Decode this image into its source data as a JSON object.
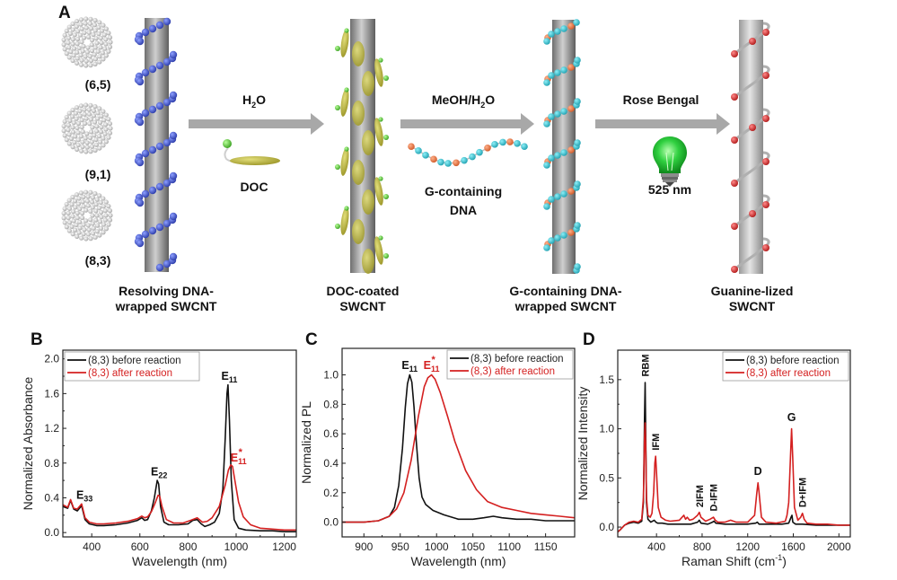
{
  "figure": {
    "panel_a": {
      "letter": "A",
      "chiralities": [
        "(6,5)",
        "(9,1)",
        "(8,3)"
      ],
      "stages": [
        {
          "caption_line1": "Resolving DNA-",
          "caption_line2": "wrapped SWCNT"
        },
        {
          "caption_line1": "DOC-coated",
          "caption_line2": "SWCNT"
        },
        {
          "caption_line1": "G-containing DNA-",
          "caption_line2": "wrapped SWCNT"
        },
        {
          "caption_line1": "Guanine-lized",
          "caption_line2": "SWCNT"
        }
      ],
      "arrows": [
        {
          "above": "H",
          "above_sub": "2",
          "above_tail": "O",
          "below_line1": "DOC",
          "below_line2": ""
        },
        {
          "above": "MeOH/H",
          "above_sub": "2",
          "above_tail": "O",
          "below_line1": "G-containing",
          "below_line2": "DNA"
        },
        {
          "above": "Rose Bengal",
          "above_sub": "",
          "above_tail": "",
          "below_line1": "525 nm",
          "below_line2": ""
        }
      ],
      "colors": {
        "nanotube": "#8c8c8c",
        "dna_blue": "#3a4fc4",
        "doc_olive": "#b5b040",
        "doc_head": "#5cc83c",
        "dna_cyan": "#2ab8c8",
        "dna_orange": "#e0703a",
        "guanine_red": "#d02828",
        "bulb_green": "#1fbf2f",
        "arrow_gray": "#a8a8a8"
      }
    }
  },
  "chart_data": [
    {
      "panel": "B",
      "type": "line",
      "title": "",
      "xlabel": "Wavelength (nm)",
      "ylabel": "Normalized Absorbance",
      "xlim": [
        280,
        1250
      ],
      "ylim": [
        -0.05,
        2.1
      ],
      "xticks": [
        400,
        600,
        800,
        1000,
        1200
      ],
      "yticks": [
        0.0,
        0.4,
        0.8,
        1.2,
        1.6,
        2.0
      ],
      "ytick_labels": [
        "0.0",
        "0.4",
        "0.8",
        "1.2",
        "1.6",
        "2.0"
      ],
      "legend": {
        "position": "top-left",
        "entries": [
          "(8,3) before reaction",
          "(8,3) after reaction"
        ]
      },
      "series": [
        {
          "name": "(8,3) before reaction",
          "color": "#111111",
          "x": [
            280,
            300,
            312,
            325,
            340,
            358,
            372,
            390,
            420,
            450,
            500,
            550,
            590,
            608,
            620,
            632,
            648,
            660,
            672,
            678,
            686,
            700,
            720,
            760,
            800,
            820,
            838,
            855,
            870,
            890,
            910,
            930,
            945,
            955,
            962,
            966,
            972,
            980,
            992,
            1010,
            1040,
            1100,
            1150,
            1200,
            1250
          ],
          "y": [
            0.3,
            0.28,
            0.37,
            0.27,
            0.25,
            0.31,
            0.15,
            0.1,
            0.08,
            0.08,
            0.09,
            0.11,
            0.14,
            0.17,
            0.14,
            0.15,
            0.25,
            0.4,
            0.6,
            0.56,
            0.3,
            0.12,
            0.09,
            0.09,
            0.1,
            0.14,
            0.15,
            0.1,
            0.07,
            0.09,
            0.12,
            0.22,
            0.5,
            1.1,
            1.6,
            1.7,
            1.3,
            0.6,
            0.15,
            0.05,
            0.03,
            0.02,
            0.02,
            0.01,
            0.01
          ]
        },
        {
          "name": "(8,3) after reaction",
          "color": "#d42020",
          "x": [
            280,
            300,
            312,
            325,
            340,
            358,
            372,
            390,
            420,
            450,
            500,
            550,
            590,
            608,
            620,
            632,
            648,
            662,
            676,
            682,
            692,
            710,
            740,
            780,
            810,
            838,
            860,
            880,
            900,
            930,
            955,
            968,
            978,
            985,
            995,
            1010,
            1030,
            1060,
            1100,
            1150,
            1200,
            1250
          ],
          "y": [
            0.32,
            0.29,
            0.38,
            0.28,
            0.27,
            0.33,
            0.17,
            0.12,
            0.1,
            0.1,
            0.11,
            0.13,
            0.16,
            0.19,
            0.17,
            0.18,
            0.24,
            0.33,
            0.43,
            0.42,
            0.3,
            0.15,
            0.11,
            0.11,
            0.14,
            0.17,
            0.12,
            0.13,
            0.17,
            0.3,
            0.55,
            0.72,
            0.78,
            0.76,
            0.6,
            0.35,
            0.18,
            0.09,
            0.05,
            0.04,
            0.03,
            0.03
          ]
        }
      ],
      "annotations": [
        {
          "text": "E",
          "sub": "33",
          "sup": "",
          "x": 370,
          "y": 0.39,
          "color": "#111111"
        },
        {
          "text": "E",
          "sub": "22",
          "sup": "",
          "x": 680,
          "y": 0.66,
          "color": "#111111"
        },
        {
          "text": "E",
          "sub": "11",
          "sup": "",
          "x": 972,
          "y": 1.76,
          "color": "#111111"
        },
        {
          "text": "E",
          "sub": "11",
          "sup": "*",
          "x": 1010,
          "y": 0.82,
          "color": "#d42020"
        }
      ]
    },
    {
      "panel": "C",
      "type": "line",
      "title": "",
      "xlabel": "Wavelength (nm)",
      "ylabel": "Normalized PL",
      "xlim": [
        870,
        1190
      ],
      "ylim": [
        -0.1,
        1.18
      ],
      "xticks": [
        900,
        950,
        1000,
        1050,
        1100,
        1150
      ],
      "yticks": [
        0.0,
        0.2,
        0.4,
        0.6,
        0.8,
        1.0
      ],
      "ytick_labels": [
        "0.0",
        "0.2",
        "0.4",
        "0.6",
        "0.8",
        "1.0"
      ],
      "legend": {
        "position": "top-right",
        "entries": [
          "(8,3) before reaction",
          "(8,3) after reaction"
        ]
      },
      "series": [
        {
          "name": "(8,3) before reaction",
          "color": "#111111",
          "x": [
            870,
            900,
            920,
            935,
            942,
            948,
            953,
            957,
            960,
            963,
            966,
            969,
            972,
            976,
            980,
            985,
            995,
            1010,
            1030,
            1050,
            1065,
            1078,
            1090,
            1110,
            1130,
            1150,
            1170,
            1190
          ],
          "y": [
            0.0,
            0.0,
            0.01,
            0.04,
            0.1,
            0.25,
            0.5,
            0.78,
            0.94,
            1.0,
            0.95,
            0.78,
            0.55,
            0.3,
            0.17,
            0.12,
            0.08,
            0.05,
            0.02,
            0.02,
            0.03,
            0.04,
            0.03,
            0.02,
            0.02,
            0.01,
            0.01,
            0.01
          ]
        },
        {
          "name": "(8,3) after reaction",
          "color": "#d42020",
          "x": [
            870,
            900,
            920,
            935,
            945,
            955,
            965,
            975,
            983,
            988,
            993,
            998,
            1005,
            1015,
            1025,
            1040,
            1055,
            1070,
            1090,
            1110,
            1130,
            1150,
            1170,
            1190
          ],
          "y": [
            0.0,
            0.0,
            0.01,
            0.04,
            0.09,
            0.2,
            0.42,
            0.72,
            0.92,
            0.98,
            1.0,
            0.97,
            0.88,
            0.72,
            0.55,
            0.35,
            0.22,
            0.14,
            0.1,
            0.08,
            0.06,
            0.05,
            0.04,
            0.03
          ]
        }
      ],
      "annotations": [
        {
          "text": "E",
          "sub": "11",
          "sup": "",
          "x": 963,
          "y": 1.04,
          "color": "#111111"
        },
        {
          "text": "E",
          "sub": "11",
          "sup": "*",
          "x": 993,
          "y": 1.04,
          "color": "#d42020"
        }
      ]
    },
    {
      "panel": "D",
      "type": "line",
      "title": "",
      "xlabel": "Raman Shift (cm",
      "xlabel_sup": "-1",
      "xlabel_tail": ")",
      "ylabel": "Normalized Intensity",
      "xlim": [
        60,
        2100
      ],
      "ylim": [
        -0.1,
        1.8
      ],
      "xticks": [
        400,
        800,
        1200,
        1600,
        2000
      ],
      "yticks": [
        0.0,
        0.5,
        1.0,
        1.5
      ],
      "ytick_labels": [
        "0.0",
        "0.5",
        "1.0",
        "1.5"
      ],
      "legend": {
        "position": "top-right",
        "entries": [
          "(8,3) before reaction",
          "(8,3) after reaction"
        ]
      },
      "series": [
        {
          "name": "(8,3) before reaction",
          "color": "#111111",
          "x": [
            60,
            80,
            120,
            160,
            200,
            240,
            270,
            285,
            295,
            300,
            305,
            312,
            325,
            350,
            380,
            395,
            410,
            450,
            500,
            600,
            700,
            760,
            775,
            790,
            850,
            890,
            905,
            920,
            1000,
            1100,
            1200,
            1270,
            1285,
            1300,
            1400,
            1500,
            1560,
            1580,
            1588,
            1596,
            1620,
            1680,
            1800,
            2000,
            2100
          ],
          "y": [
            -0.05,
            -0.03,
            0.02,
            0.04,
            0.05,
            0.04,
            0.06,
            0.25,
            1.1,
            1.47,
            1.0,
            0.25,
            0.08,
            0.05,
            0.07,
            0.05,
            0.04,
            0.04,
            0.03,
            0.03,
            0.03,
            0.05,
            0.07,
            0.04,
            0.03,
            0.05,
            0.06,
            0.04,
            0.03,
            0.03,
            0.03,
            0.04,
            0.05,
            0.03,
            0.03,
            0.03,
            0.04,
            0.1,
            0.12,
            0.05,
            0.03,
            0.03,
            0.02,
            0.02,
            0.02
          ]
        },
        {
          "name": "(8,3) after reaction",
          "color": "#d42020",
          "x": [
            60,
            80,
            120,
            160,
            200,
            240,
            270,
            285,
            295,
            300,
            305,
            312,
            325,
            345,
            360,
            375,
            385,
            392,
            400,
            415,
            440,
            480,
            520,
            600,
            640,
            655,
            670,
            690,
            720,
            760,
            775,
            790,
            830,
            870,
            900,
            915,
            940,
            1000,
            1050,
            1100,
            1200,
            1260,
            1280,
            1290,
            1300,
            1320,
            1360,
            1450,
            1530,
            1545,
            1560,
            1575,
            1585,
            1595,
            1610,
            1640,
            1665,
            1680,
            1695,
            1720,
            1800,
            1900,
            2000,
            2100
          ],
          "y": [
            -0.05,
            -0.03,
            0.02,
            0.05,
            0.06,
            0.05,
            0.08,
            0.3,
            0.9,
            1.06,
            0.85,
            0.3,
            0.12,
            0.1,
            0.14,
            0.35,
            0.65,
            0.72,
            0.55,
            0.2,
            0.1,
            0.07,
            0.06,
            0.07,
            0.12,
            0.08,
            0.1,
            0.07,
            0.08,
            0.12,
            0.15,
            0.1,
            0.06,
            0.08,
            0.1,
            0.07,
            0.05,
            0.05,
            0.07,
            0.05,
            0.05,
            0.12,
            0.35,
            0.45,
            0.35,
            0.1,
            0.05,
            0.04,
            0.06,
            0.12,
            0.25,
            0.7,
            1.0,
            0.7,
            0.2,
            0.07,
            0.1,
            0.14,
            0.08,
            0.04,
            0.03,
            0.03,
            0.02,
            0.02
          ]
        }
      ],
      "annotations": [
        {
          "text": "RBM",
          "rotated": true,
          "x": 300,
          "y": 1.53,
          "color": "#111111"
        },
        {
          "text": "IFM",
          "rotated": true,
          "x": 392,
          "y": 0.78,
          "color": "#111111"
        },
        {
          "text": "2IFM",
          "rotated": true,
          "x": 775,
          "y": 0.2,
          "color": "#111111"
        },
        {
          "text": "D-IFM",
          "rotated": true,
          "x": 900,
          "y": 0.16,
          "color": "#111111"
        },
        {
          "text": "D",
          "rotated": false,
          "x": 1290,
          "y": 0.53,
          "color": "#111111"
        },
        {
          "text": "G",
          "rotated": false,
          "x": 1585,
          "y": 1.08,
          "color": "#111111"
        },
        {
          "text": "D+IFM",
          "rotated": true,
          "x": 1680,
          "y": 0.2,
          "color": "#111111"
        }
      ]
    }
  ]
}
